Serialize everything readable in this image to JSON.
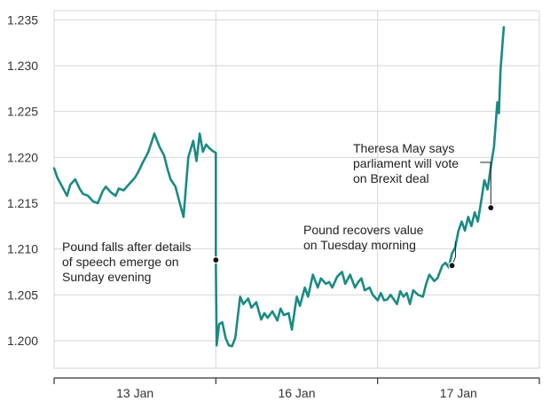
{
  "chart_data": {
    "type": "line",
    "title": "",
    "xlabel": "",
    "ylabel": "",
    "ylim": [
      1.197,
      1.236
    ],
    "yticks": [
      "1.200",
      "1.205",
      "1.210",
      "1.215",
      "1.220",
      "1.225",
      "1.230",
      "1.235"
    ],
    "x_sections": [
      {
        "label": "13 Jan",
        "x_start": 0,
        "x_end": 1
      },
      {
        "label": "16 Jan",
        "x_start": 1,
        "x_end": 2
      },
      {
        "label": "17 Jan",
        "x_start": 2,
        "x_end": 3
      }
    ],
    "xlim": [
      0,
      3
    ],
    "grid": true,
    "line_color": "#1a8a84",
    "series": [
      {
        "x": [
          0.0,
          0.02,
          0.05,
          0.08,
          0.1,
          0.13,
          0.16,
          0.18,
          0.21,
          0.24,
          0.27,
          0.3,
          0.32,
          0.35,
          0.38,
          0.4,
          0.43,
          0.46,
          0.5,
          0.52,
          0.55,
          0.58,
          0.6,
          0.62,
          0.65,
          0.68,
          0.7,
          0.72,
          0.75,
          0.78,
          0.8,
          0.83,
          0.86,
          0.88,
          0.9,
          0.92,
          0.94,
          0.96,
          0.98,
          1.0,
          1.0,
          1.005,
          1.02,
          1.04,
          1.06,
          1.08,
          1.1,
          1.12,
          1.15,
          1.17,
          1.2,
          1.22,
          1.25,
          1.28,
          1.3,
          1.32,
          1.35,
          1.38,
          1.4,
          1.42,
          1.45,
          1.47,
          1.5,
          1.52,
          1.55,
          1.57,
          1.6,
          1.63,
          1.65,
          1.68,
          1.7,
          1.72,
          1.75,
          1.78,
          1.8,
          1.83,
          1.86,
          1.88,
          1.9,
          1.92,
          1.95,
          1.97,
          2.0,
          2.02,
          2.04,
          2.06,
          2.08,
          2.1,
          2.12,
          2.14,
          2.16,
          2.18,
          2.2,
          2.22,
          2.25,
          2.28,
          2.3,
          2.32,
          2.35,
          2.37,
          2.4,
          2.42,
          2.44,
          2.46,
          2.48,
          2.5,
          2.52,
          2.54,
          2.56,
          2.58,
          2.6,
          2.62,
          2.64,
          2.66,
          2.68,
          2.7,
          2.72,
          2.74,
          2.75,
          2.76,
          2.78
        ],
        "y": [
          1.2188,
          1.2178,
          1.2168,
          1.2158,
          1.217,
          1.2176,
          1.2165,
          1.216,
          1.2158,
          1.2152,
          1.215,
          1.2163,
          1.2168,
          1.2162,
          1.2158,
          1.2166,
          1.2164,
          1.217,
          1.2178,
          1.2184,
          1.2195,
          1.2205,
          1.2215,
          1.2226,
          1.2212,
          1.2202,
          1.2188,
          1.2176,
          1.2168,
          1.2148,
          1.2135,
          1.22,
          1.2218,
          1.2196,
          1.2226,
          1.2206,
          1.2214,
          1.221,
          1.2207,
          1.2205,
          1.2088,
          1.1995,
          1.2018,
          1.202,
          1.2003,
          1.1995,
          1.1994,
          1.2003,
          1.2048,
          1.204,
          1.2046,
          1.2036,
          1.2042,
          1.2023,
          1.203,
          1.2025,
          1.2032,
          1.2022,
          1.2035,
          1.2028,
          1.203,
          1.2012,
          1.2048,
          1.2038,
          1.2058,
          1.2048,
          1.2072,
          1.2058,
          1.2068,
          1.2062,
          1.2064,
          1.2058,
          1.207,
          1.2075,
          1.2062,
          1.2072,
          1.2058,
          1.2064,
          1.2068,
          1.2055,
          1.2058,
          1.205,
          1.2044,
          1.2052,
          1.2044,
          1.2045,
          1.205,
          1.2045,
          1.204,
          1.2054,
          1.2048,
          1.2052,
          1.204,
          1.2055,
          1.205,
          1.2048,
          1.2062,
          1.2072,
          1.2065,
          1.2068,
          1.2082,
          1.2085,
          1.208,
          1.2095,
          1.2102,
          1.212,
          1.213,
          1.212,
          1.2135,
          1.2125,
          1.214,
          1.213,
          1.2152,
          1.2175,
          1.2165,
          1.219,
          1.2212,
          1.226,
          1.2248,
          1.2295,
          1.2342
        ]
      }
    ],
    "annotations": [
      {
        "lines": [
          "Pound falls after details",
          "of speech emerge on",
          "Sunday evening"
        ],
        "x": 1.0,
        "y": 1.2088
      },
      {
        "lines": [
          "Pound recovers value",
          "on Tuesday morning"
        ],
        "x": 2.46,
        "y": 1.2082
      },
      {
        "lines": [
          "Theresa May says",
          "parliament will vote",
          "on Brexit deal"
        ],
        "x": 2.7,
        "y": 1.2145
      }
    ]
  }
}
